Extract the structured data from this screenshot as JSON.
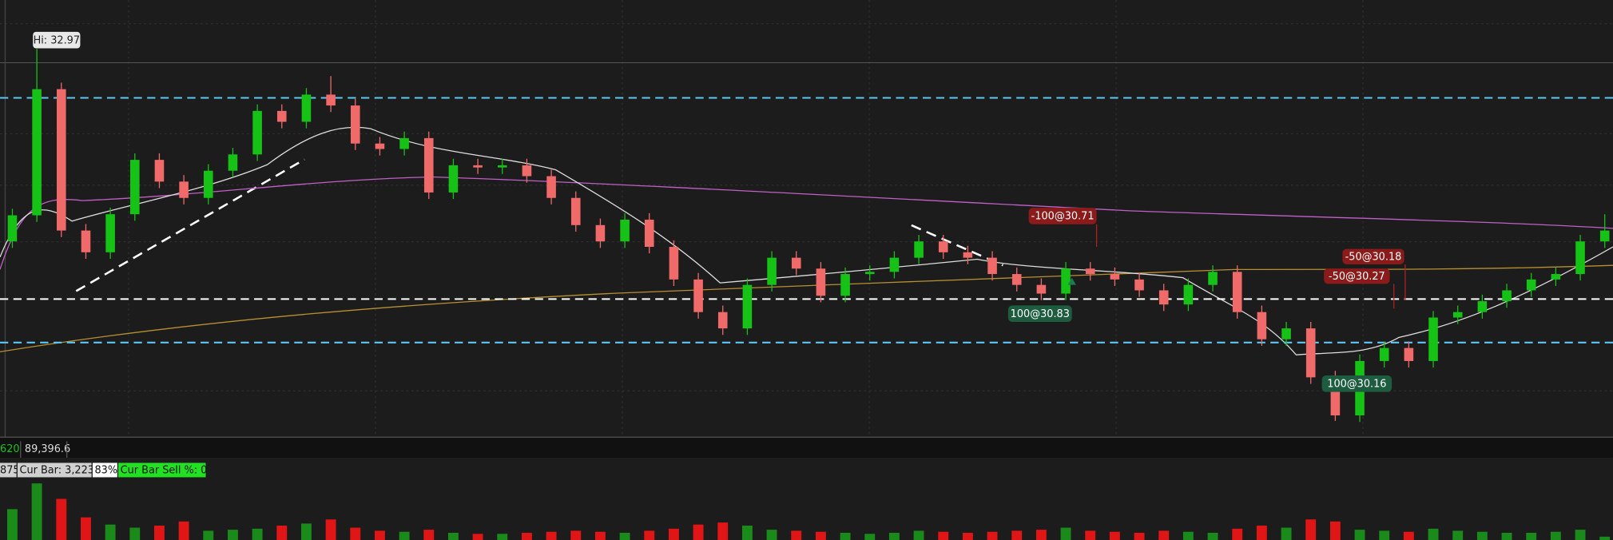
{
  "chart_data": {
    "type": "candlestick",
    "hi_label": "Hi: 32.97",
    "ylim": [
      29.4,
      33.42
    ],
    "vlim": [
      0,
      60000
    ],
    "up_color": "#17c217",
    "down_color": "#f06a6a",
    "hlines": [
      {
        "value": 32.52,
        "color": "#5bc8f5"
      },
      {
        "value": 30.67,
        "color": "#ffffff"
      },
      {
        "value": 30.27,
        "color": "#5bc8f5"
      }
    ],
    "open": [
      31.2,
      31.44,
      32.6,
      31.3,
      31.1,
      31.45,
      31.95,
      31.75,
      31.6,
      31.85,
      32.0,
      32.4,
      32.3,
      32.55,
      32.45,
      32.1,
      32.05,
      32.15,
      31.65,
      31.9,
      31.88,
      31.9,
      31.8,
      31.6,
      31.35,
      31.2,
      31.4,
      31.15,
      30.85,
      30.55,
      30.4,
      30.8,
      31.05,
      30.95,
      30.7,
      30.9,
      30.92,
      31.05,
      31.2,
      31.1,
      31.05,
      30.9,
      30.8,
      30.72,
      30.95,
      30.9,
      30.85,
      30.75,
      30.62,
      30.8,
      30.92,
      30.55,
      30.3,
      30.4,
      29.95,
      29.6,
      30.1,
      30.22,
      30.1,
      30.5,
      30.55,
      30.65,
      30.75,
      30.85,
      30.9,
      31.2
    ],
    "high": [
      31.5,
      32.97,
      32.66,
      31.36,
      31.51,
      32.01,
      32.01,
      31.81,
      31.91,
      32.06,
      32.46,
      32.46,
      32.61,
      32.72,
      32.51,
      32.16,
      32.21,
      32.21,
      31.96,
      31.96,
      31.96,
      31.96,
      31.86,
      31.66,
      31.41,
      31.46,
      31.46,
      31.21,
      30.91,
      30.61,
      30.86,
      31.11,
      31.11,
      31.01,
      30.96,
      30.98,
      31.11,
      31.26,
      31.26,
      31.16,
      31.11,
      30.96,
      30.86,
      31.01,
      31.01,
      30.96,
      30.91,
      30.81,
      30.86,
      30.98,
      30.98,
      30.61,
      30.46,
      30.46,
      30.01,
      30.16,
      30.28,
      30.28,
      30.56,
      30.61,
      30.71,
      30.81,
      30.91,
      30.96,
      31.26,
      31.45
    ],
    "low": [
      31.14,
      31.38,
      31.24,
      31.04,
      31.04,
      31.39,
      31.69,
      31.54,
      31.54,
      31.79,
      31.94,
      32.24,
      32.24,
      32.39,
      32.04,
      31.99,
      31.99,
      31.59,
      31.59,
      31.82,
      31.82,
      31.74,
      31.54,
      31.29,
      31.14,
      31.14,
      31.09,
      30.79,
      30.49,
      30.34,
      30.34,
      30.74,
      30.89,
      30.64,
      30.64,
      30.84,
      30.86,
      30.99,
      31.04,
      30.99,
      30.84,
      30.74,
      30.66,
      30.66,
      30.84,
      30.79,
      30.69,
      30.56,
      30.56,
      30.74,
      30.49,
      30.24,
      30.24,
      29.89,
      29.55,
      29.54,
      30.04,
      30.04,
      30.04,
      30.44,
      30.49,
      30.59,
      30.69,
      30.79,
      30.84,
      31.14
    ],
    "close": [
      31.44,
      32.6,
      31.3,
      31.1,
      31.45,
      31.95,
      31.75,
      31.6,
      31.85,
      32.0,
      32.4,
      32.3,
      32.55,
      32.45,
      32.1,
      32.05,
      32.15,
      31.65,
      31.9,
      31.88,
      31.9,
      31.8,
      31.6,
      31.35,
      31.2,
      31.4,
      31.15,
      30.85,
      30.55,
      30.4,
      30.8,
      31.05,
      30.95,
      30.7,
      30.9,
      30.92,
      31.05,
      31.2,
      31.1,
      31.05,
      30.9,
      30.8,
      30.72,
      30.95,
      30.9,
      30.85,
      30.75,
      30.62,
      30.8,
      30.92,
      30.55,
      30.3,
      30.4,
      29.95,
      29.6,
      30.1,
      30.22,
      30.1,
      30.5,
      30.55,
      30.65,
      30.75,
      30.85,
      30.9,
      31.2,
      31.3
    ],
    "volume": [
      30000,
      55000,
      40000,
      22000,
      15000,
      12000,
      14000,
      18000,
      9000,
      10000,
      11000,
      14000,
      16000,
      20000,
      12000,
      9000,
      8000,
      10000,
      7000,
      6000,
      6000,
      7000,
      8000,
      9000,
      8000,
      7000,
      9000,
      11000,
      15000,
      17000,
      14000,
      10000,
      9000,
      8000,
      7000,
      6000,
      7000,
      9000,
      8000,
      7000,
      8000,
      9000,
      10000,
      12000,
      9000,
      8000,
      7000,
      9000,
      8000,
      7000,
      11000,
      14000,
      12000,
      20000,
      18000,
      10000,
      9000,
      8000,
      11000,
      9000,
      8000,
      7000,
      7000,
      8000,
      10000,
      3223
    ],
    "orders": [
      "-100@30.71",
      "100@30.83",
      "-50@30.18",
      "-50@30.27",
      "100@30.16"
    ],
    "status": {
      "volume_left": "620",
      "volume_total": "89,396.6",
      "bar_left": "875",
      "cur_bar": "Cur Bar: 3,223",
      "pct": "83%",
      "sell_pct": "Cur Bar Sell %: 0"
    }
  }
}
